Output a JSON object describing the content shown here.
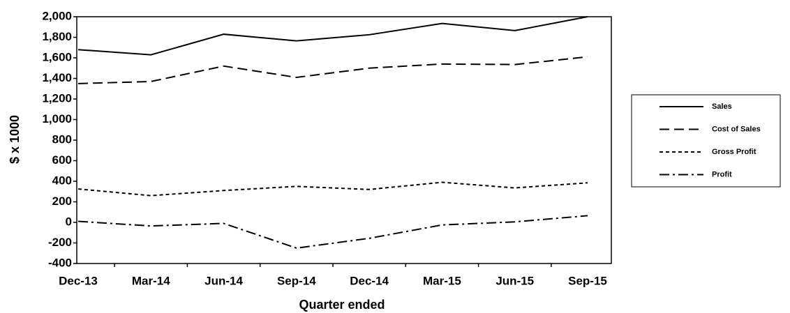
{
  "chart_data": {
    "type": "line",
    "y_label": "$ x 1000",
    "x_label": "Quarter ended",
    "categories": [
      "Dec-13",
      "Mar-14",
      "Jun-14",
      "Sep-14",
      "Dec-14",
      "Mar-15",
      "Jun-15",
      "Sep-15"
    ],
    "series": [
      {
        "name": "Sales",
        "color": "#000000",
        "dash": "solid",
        "values": [
          1680,
          1630,
          1830,
          1765,
          1825,
          1935,
          1865,
          2000
        ]
      },
      {
        "name": "Cost of Sales",
        "color": "#000000",
        "dash": "long-dash",
        "values": [
          1350,
          1370,
          1520,
          1410,
          1500,
          1540,
          1535,
          1610
        ]
      },
      {
        "name": "Gross Profit",
        "color": "#000000",
        "dash": "short-dash",
        "values": [
          325,
          260,
          310,
          350,
          320,
          390,
          335,
          385
        ]
      },
      {
        "name": "Profit",
        "color": "#000000",
        "dash": "dash-dot",
        "values": [
          10,
          -35,
          -10,
          -250,
          -155,
          -25,
          5,
          65
        ]
      }
    ],
    "ylim": [
      -400,
      2000
    ],
    "yticks": [
      -400,
      -200,
      0,
      200,
      400,
      600,
      800,
      {
        "value": 1000,
        "label": "1,000"
      },
      {
        "value": 1200,
        "label": "1,200"
      },
      {
        "value": 1400,
        "label": "1,400"
      },
      {
        "value": 1600,
        "label": "1,600"
      },
      {
        "value": 1800,
        "label": "1,800"
      },
      {
        "value": 2000,
        "label": "2,000"
      }
    ],
    "grid": false,
    "legend": "right"
  }
}
